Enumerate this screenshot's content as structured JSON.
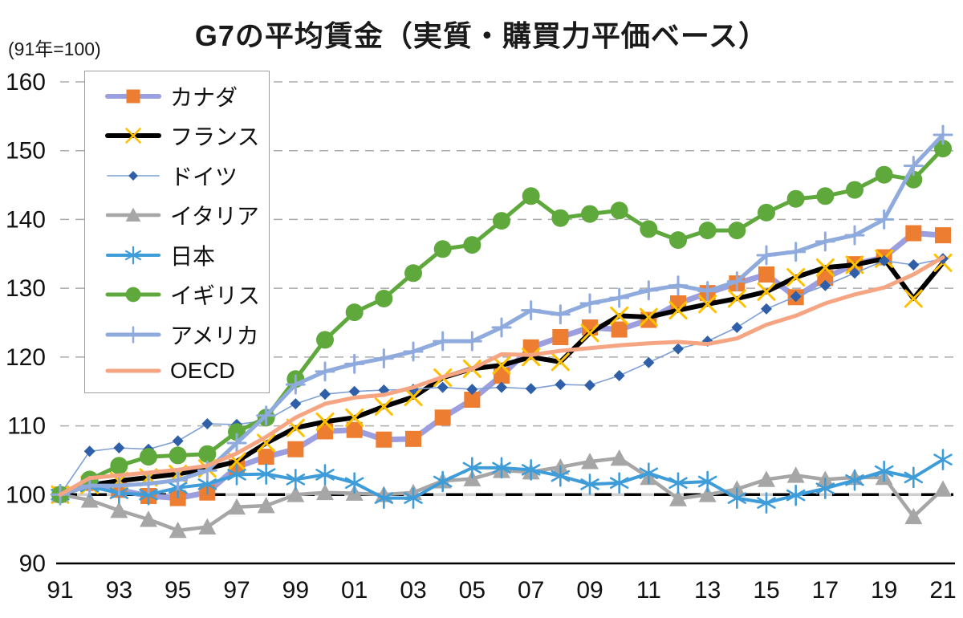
{
  "header": {
    "title": "G7の平均賃金（実質・購買力平価ベース）",
    "axis_note": "(91年=100)"
  },
  "chart_data": {
    "type": "line",
    "title": "G7の平均賃金（実質・購買力平価ベース）",
    "index_note": "(91年=100)",
    "x_years": [
      1991,
      1992,
      1993,
      1994,
      1995,
      1996,
      1997,
      1998,
      1999,
      2000,
      2001,
      2002,
      2003,
      2004,
      2005,
      2006,
      2007,
      2008,
      2009,
      2010,
      2011,
      2012,
      2013,
      2014,
      2015,
      2016,
      2017,
      2018,
      2019,
      2020,
      2021
    ],
    "x_tick_labels": [
      "91",
      "93",
      "95",
      "97",
      "99",
      "01",
      "03",
      "05",
      "07",
      "09",
      "11",
      "13",
      "15",
      "17",
      "19",
      "21"
    ],
    "y_ticks": [
      160,
      150,
      140,
      130,
      120,
      110,
      100,
      90
    ],
    "ylim": [
      90,
      160
    ],
    "baseline_value": 100,
    "grid": "horizontal dashed",
    "legend_position": "upper-left",
    "grid_color": "#ababab",
    "axis_color": "#000000",
    "series": [
      {
        "name": "canada",
        "label": "カナダ",
        "marker": "square",
        "line_color": "#9b9fe0",
        "marker_color": "#ed7d31",
        "values": [
          100,
          101.7,
          100.7,
          99.8,
          99.5,
          100.3,
          104.0,
          105.5,
          106.6,
          109.2,
          109.4,
          108.0,
          108.1,
          111.2,
          113.8,
          117.3,
          121.4,
          122.9,
          124.3,
          124.0,
          125.4,
          127.8,
          129.3,
          130.7,
          132.0,
          128.7,
          131.5,
          133.5,
          134.5,
          138.0,
          137.7
        ]
      },
      {
        "name": "france",
        "label": "フランス",
        "marker": "x",
        "line_color": "#000000",
        "marker_color": "#ffc000",
        "values": [
          100,
          101.4,
          102.0,
          102.5,
          103.0,
          103.8,
          104.8,
          107.5,
          109.7,
          110.6,
          111.2,
          112.8,
          114.2,
          117.0,
          118.3,
          118.8,
          120.0,
          119.3,
          123.5,
          126.0,
          125.8,
          126.8,
          127.7,
          128.5,
          129.5,
          131.6,
          133.0,
          133.4,
          134.3,
          128.5,
          133.7
        ]
      },
      {
        "name": "germany",
        "label": "ドイツ",
        "marker": "diamond",
        "line_color": "#7e9fd4",
        "marker_color": "#2e5fa8",
        "values": [
          100,
          106.3,
          106.8,
          106.6,
          107.8,
          110.3,
          110.2,
          110.8,
          113.2,
          114.6,
          115.0,
          115.2,
          115.3,
          115.6,
          115.3,
          115.6,
          115.4,
          116.0,
          115.9,
          117.3,
          119.2,
          121.2,
          122.3,
          124.3,
          127.0,
          128.8,
          130.4,
          132.2,
          134.0,
          133.4,
          134.3
        ]
      },
      {
        "name": "italy",
        "label": "イタリア",
        "marker": "triangle",
        "line_color": "#a6a6a6",
        "marker_color": "#a6a6a6",
        "values": [
          100,
          99.2,
          97.7,
          96.4,
          94.8,
          95.3,
          98.2,
          98.4,
          100.0,
          100.3,
          100.2,
          100.0,
          100.3,
          102.0,
          102.3,
          103.5,
          103.3,
          104.0,
          104.8,
          105.3,
          102.5,
          99.4,
          100.0,
          100.8,
          102.2,
          102.8,
          102.2,
          102.5,
          102.5,
          96.8,
          100.8
        ]
      },
      {
        "name": "japan",
        "label": "日本",
        "marker": "asterisk",
        "line_color": "#3e9cd9",
        "marker_color": "#3e9cd9",
        "values": [
          100,
          101.2,
          100.2,
          100.0,
          101.0,
          101.5,
          102.9,
          103.0,
          102.2,
          102.9,
          101.7,
          99.5,
          99.5,
          101.9,
          103.9,
          103.9,
          103.6,
          102.7,
          101.5,
          101.7,
          103.1,
          101.7,
          101.9,
          99.5,
          98.8,
          99.9,
          100.9,
          102.1,
          103.4,
          102.5,
          105.1
        ]
      },
      {
        "name": "uk",
        "label": "イギリス",
        "marker": "circle",
        "line_color": "#5fa83b",
        "marker_color": "#5fa83b",
        "values": [
          100,
          102.2,
          104.2,
          105.5,
          105.7,
          105.9,
          109.1,
          111.2,
          116.8,
          122.5,
          126.5,
          128.5,
          132.2,
          135.7,
          136.3,
          139.8,
          143.4,
          140.2,
          140.8,
          141.3,
          138.6,
          137.0,
          138.4,
          138.4,
          141.0,
          143.0,
          143.4,
          144.3,
          146.5,
          145.8,
          150.3
        ]
      },
      {
        "name": "usa",
        "label": "アメリカ",
        "marker": "plus",
        "line_color": "#8faadc",
        "marker_color": "#8faadc",
        "values": [
          100,
          101.3,
          101.3,
          101.6,
          102.1,
          103.5,
          107.5,
          111.5,
          116.0,
          117.9,
          119.0,
          119.8,
          120.8,
          122.3,
          122.3,
          124.3,
          126.8,
          126.2,
          127.8,
          128.6,
          129.7,
          130.4,
          129.6,
          131.0,
          134.8,
          135.3,
          136.8,
          137.7,
          140.0,
          147.8,
          152.3
        ]
      },
      {
        "name": "oecd",
        "label": "OECD",
        "marker": "none",
        "line_color": "#f6a583",
        "marker_color": "#f6a583",
        "values": [
          100,
          102.4,
          102.8,
          103.2,
          103.6,
          104.2,
          106.0,
          108.4,
          111.2,
          113.2,
          114.1,
          114.5,
          115.6,
          117.1,
          118.3,
          120.4,
          120.3,
          120.9,
          121.3,
          121.7,
          122.0,
          122.2,
          121.9,
          122.7,
          124.7,
          126.0,
          127.8,
          129.1,
          130.1,
          132.0,
          134.5
        ]
      }
    ]
  }
}
